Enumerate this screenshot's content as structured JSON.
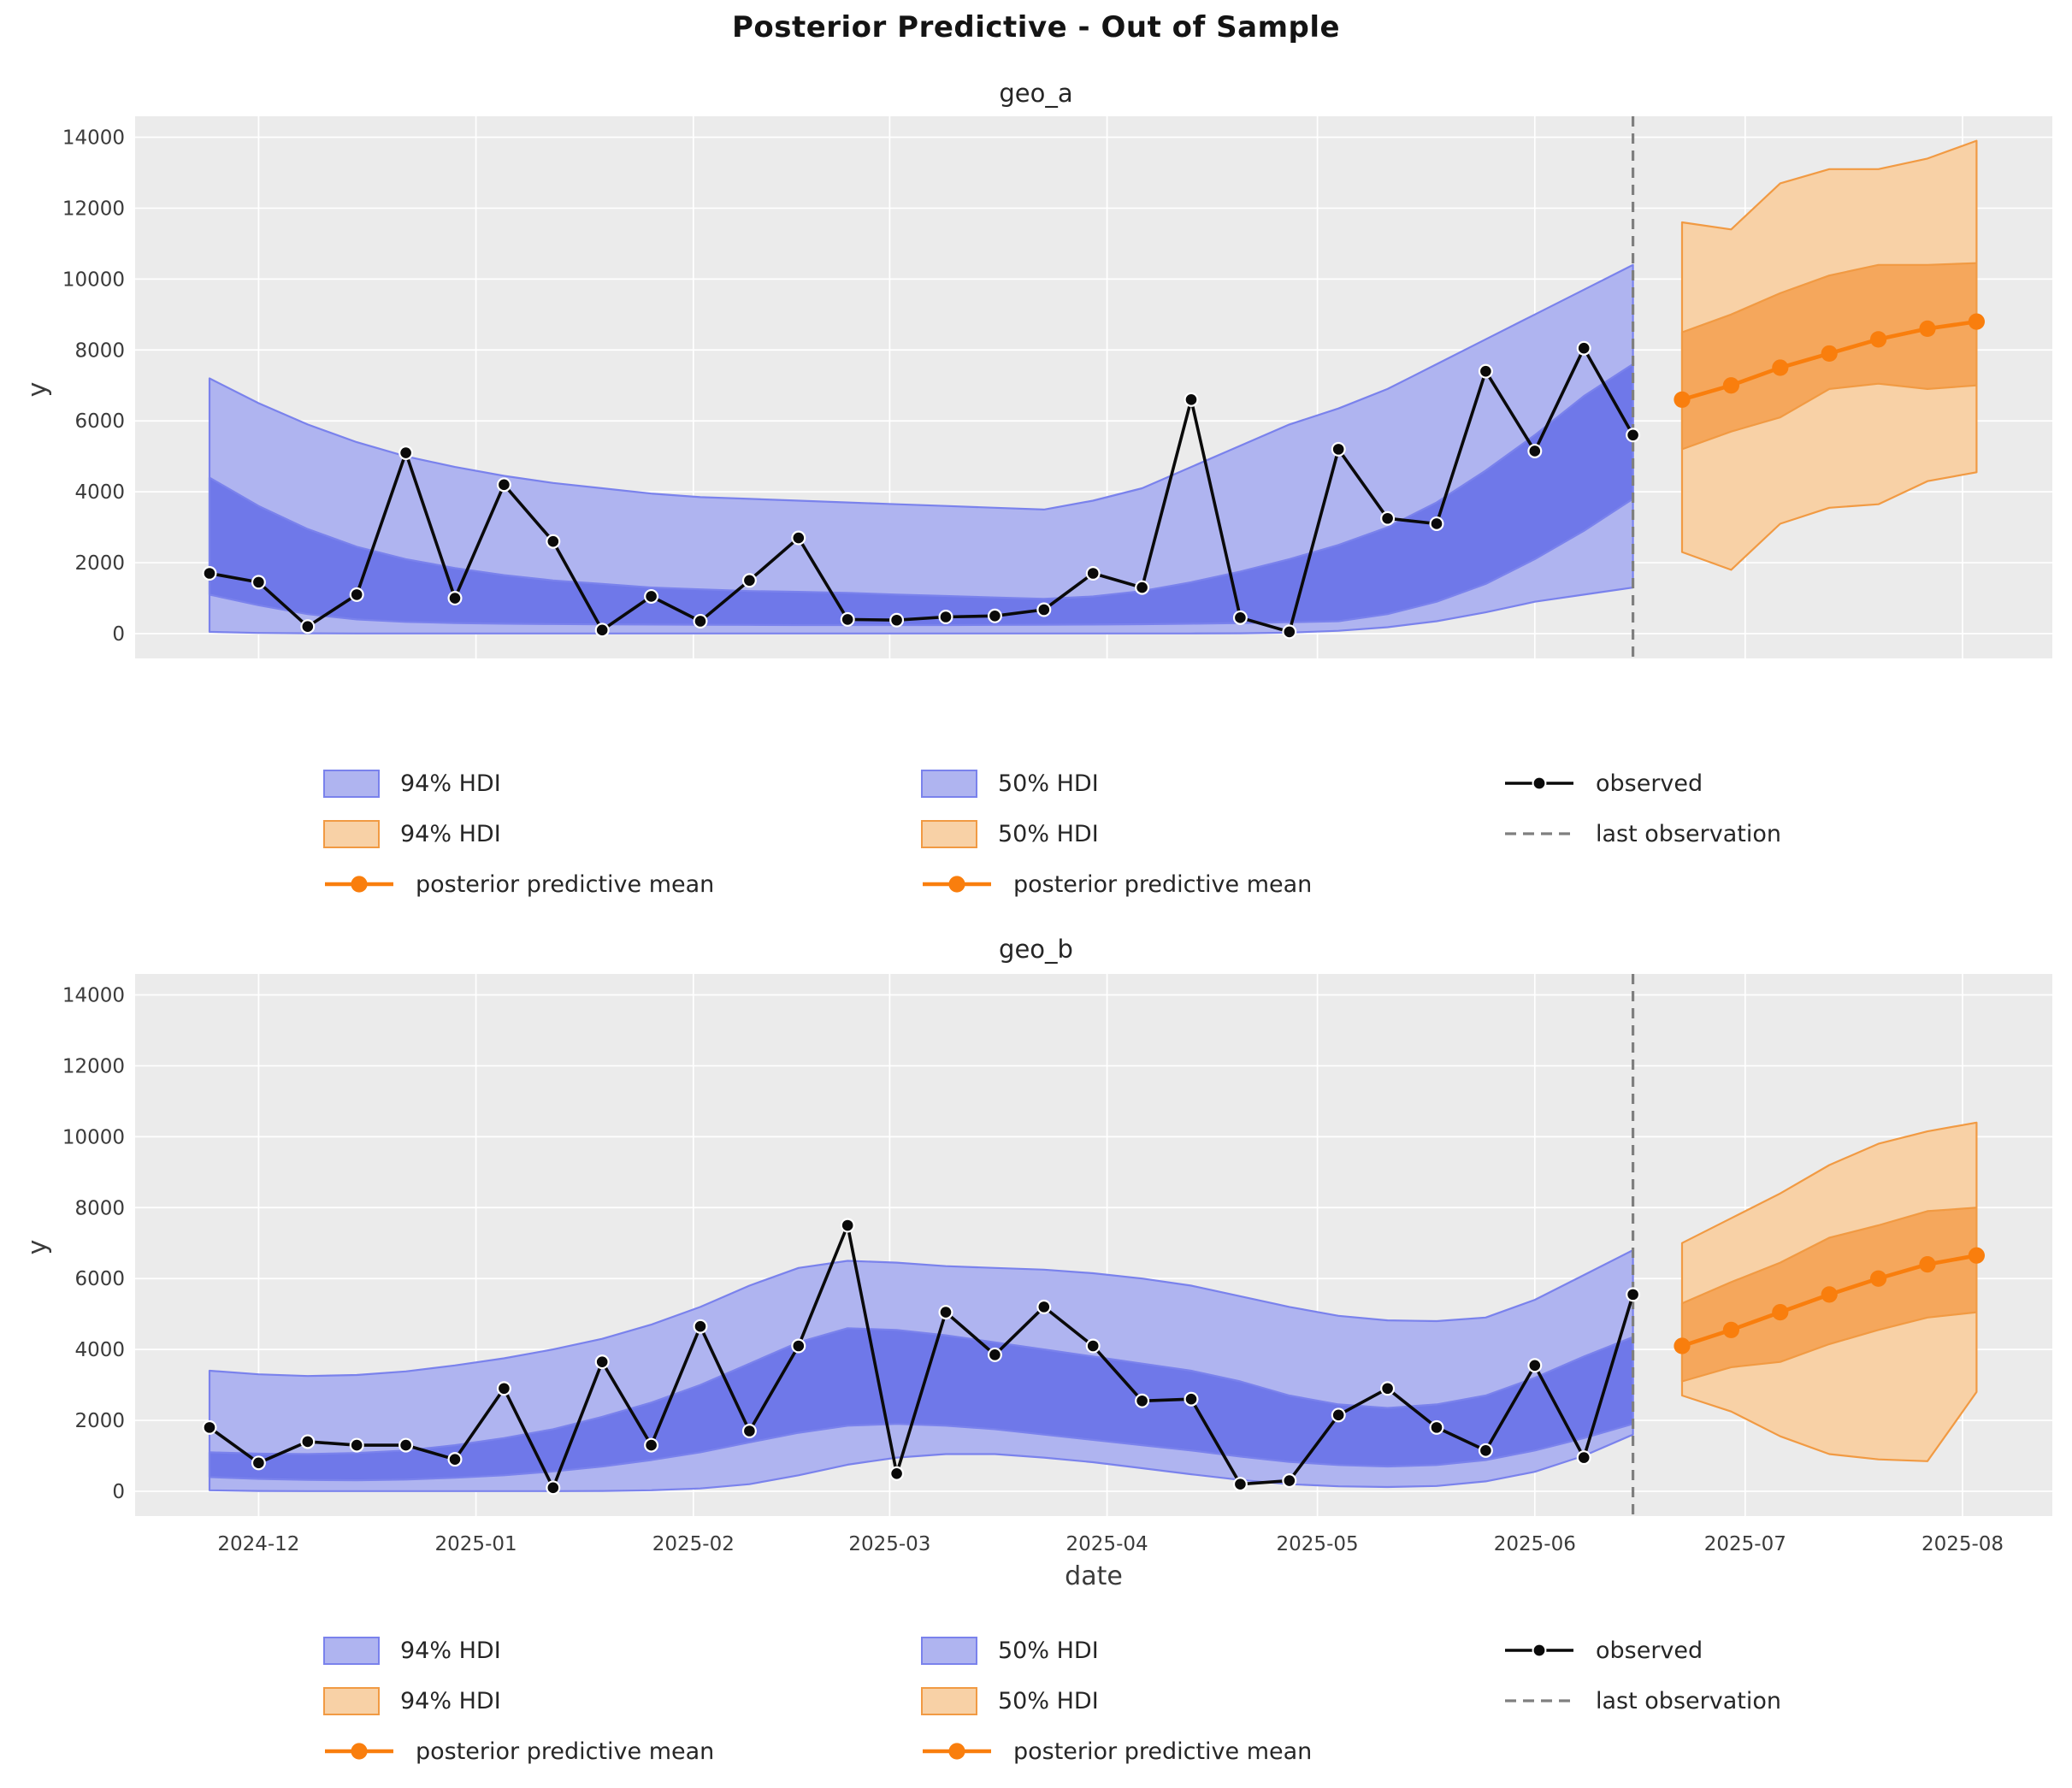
{
  "title": "Posterior Predictive - Out of Sample",
  "x_axis": {
    "label": "date",
    "tick_labels": [
      "2024-12",
      "2025-01",
      "2025-02",
      "2025-03",
      "2025-04",
      "2025-05",
      "2025-06",
      "2025-07",
      "2025-08"
    ],
    "tick_dates": [
      "2024-12-01",
      "2025-01-01",
      "2025-02-01",
      "2025-03-01",
      "2025-04-01",
      "2025-05-01",
      "2025-06-01",
      "2025-07-01",
      "2025-08-01"
    ]
  },
  "y_axis": {
    "label": "y",
    "ticks": [
      0,
      2000,
      4000,
      6000,
      8000,
      10000,
      12000,
      14000
    ]
  },
  "colors": {
    "plot_bg": "#EBEBEB",
    "grid": "#FFFFFF",
    "blue_hdi94_fill": "#AFB4F0",
    "blue_hdi50_fill": "#6F78E9",
    "blue_edge": "#7A82EC",
    "orange_hdi94_fill": "#F8D1A6",
    "orange_hdi50_fill": "#F5A75C",
    "orange_edge": "#F19A43",
    "orange_line": "#F97E0D",
    "observed_line": "#0A0A0A",
    "last_observation_line": "#7F7F7F",
    "tick_text": "#3B3B3B"
  },
  "legend": {
    "columns": [
      [
        {
          "swatch": "blue-patch",
          "label": "94% HDI"
        },
        {
          "swatch": "orange-patch",
          "label": "94% HDI"
        },
        {
          "swatch": "orange-line",
          "label": "posterior predictive mean"
        }
      ],
      [
        {
          "swatch": "blue-patch",
          "label": "50% HDI"
        },
        {
          "swatch": "orange-patch",
          "label": "50% HDI"
        },
        {
          "swatch": "orange-line",
          "label": "posterior predictive mean"
        }
      ],
      [
        {
          "swatch": "black-line",
          "label": "observed"
        },
        {
          "swatch": "gray-dashed",
          "label": "last observation"
        }
      ]
    ]
  },
  "chart_data": [
    {
      "type": "line",
      "title": "geo_a",
      "ylabel": "y",
      "ylim": [
        -690,
        15750
      ],
      "grid": true,
      "last_observation_date": "2025-06-15",
      "observed": {
        "dates": [
          "2024-11-24",
          "2024-12-01",
          "2024-12-08",
          "2024-12-15",
          "2024-12-22",
          "2024-12-29",
          "2025-01-05",
          "2025-01-12",
          "2025-01-19",
          "2025-01-26",
          "2025-02-02",
          "2025-02-09",
          "2025-02-16",
          "2025-02-23",
          "2025-03-02",
          "2025-03-09",
          "2025-03-16",
          "2025-03-23",
          "2025-03-30",
          "2025-04-06",
          "2025-04-13",
          "2025-04-20",
          "2025-04-27",
          "2025-05-04",
          "2025-05-11",
          "2025-05-18",
          "2025-05-25",
          "2025-06-01",
          "2025-06-08",
          "2025-06-15"
        ],
        "values": [
          1700,
          1450,
          200,
          1100,
          5100,
          1000,
          4200,
          2600,
          100,
          1050,
          350,
          1500,
          2700,
          400,
          380,
          470,
          500,
          675,
          1700,
          1300,
          6600,
          450,
          50,
          5200,
          3250,
          3100,
          7400,
          5150,
          8050,
          5600
        ]
      },
      "insample_hdi94": {
        "upper": [
          7200,
          6500,
          5900,
          5400,
          5000,
          4700,
          4450,
          4250,
          4100,
          3950,
          3850,
          3800,
          3750,
          3700,
          3650,
          3600,
          3550,
          3500,
          3750,
          4100,
          4700,
          5300,
          5900,
          6350,
          6900,
          7600,
          8300,
          9000,
          9700,
          10400
        ],
        "lower": [
          50,
          20,
          10,
          5,
          5,
          5,
          5,
          5,
          5,
          5,
          5,
          5,
          5,
          5,
          5,
          5,
          5,
          5,
          5,
          5,
          5,
          10,
          30,
          80,
          180,
          350,
          600,
          900,
          1100,
          1300
        ]
      },
      "insample_hdi50": {
        "upper": [
          4400,
          3600,
          2950,
          2450,
          2100,
          1850,
          1650,
          1500,
          1400,
          1300,
          1250,
          1200,
          1180,
          1150,
          1100,
          1060,
          1020,
          980,
          1050,
          1200,
          1450,
          1750,
          2100,
          2500,
          3000,
          3700,
          4600,
          5600,
          6700,
          7600
        ],
        "lower": [
          1100,
          800,
          550,
          400,
          330,
          300,
          280,
          270,
          260,
          255,
          250,
          245,
          240,
          240,
          240,
          240,
          245,
          250,
          255,
          265,
          280,
          300,
          320,
          350,
          550,
          900,
          1400,
          2100,
          2900,
          3800
        ]
      },
      "forecast": {
        "dates": [
          "2025-06-22",
          "2025-06-29",
          "2025-07-06",
          "2025-07-13",
          "2025-07-20",
          "2025-07-27",
          "2025-08-03"
        ],
        "mean": [
          6600,
          7000,
          7500,
          7900,
          8300,
          8600,
          8800
        ],
        "hdi94_upper": [
          11600,
          11400,
          12700,
          13100,
          13100,
          13400,
          13900
        ],
        "hdi94_lower": [
          2300,
          1800,
          3100,
          3550,
          3650,
          4300,
          4550
        ],
        "hdi50_upper": [
          8500,
          9000,
          9600,
          10100,
          10400,
          10400,
          10450
        ],
        "hdi50_lower": [
          5200,
          5700,
          6100,
          6900,
          7050,
          6900,
          7000
        ]
      }
    },
    {
      "type": "line",
      "title": "geo_b",
      "ylabel": "y",
      "ylim": [
        -690,
        15750
      ],
      "grid": true,
      "last_observation_date": "2025-06-15",
      "observed": {
        "dates": [
          "2024-11-24",
          "2024-12-01",
          "2024-12-08",
          "2024-12-15",
          "2024-12-22",
          "2024-12-29",
          "2025-01-05",
          "2025-01-12",
          "2025-01-19",
          "2025-01-26",
          "2025-02-02",
          "2025-02-09",
          "2025-02-16",
          "2025-02-23",
          "2025-03-02",
          "2025-03-09",
          "2025-03-16",
          "2025-03-23",
          "2025-03-30",
          "2025-04-06",
          "2025-04-13",
          "2025-04-20",
          "2025-04-27",
          "2025-05-04",
          "2025-05-11",
          "2025-05-18",
          "2025-05-25",
          "2025-06-01",
          "2025-06-08",
          "2025-06-15"
        ],
        "values": [
          1800,
          800,
          1400,
          1300,
          1300,
          900,
          2900,
          100,
          3650,
          1300,
          4650,
          1700,
          4100,
          7500,
          500,
          5050,
          3850,
          5200,
          4100,
          2550,
          2600,
          200,
          300,
          2150,
          2900,
          1800,
          1150,
          3550,
          950,
          5550
        ]
      },
      "insample_hdi94": {
        "upper": [
          3400,
          3300,
          3250,
          3280,
          3380,
          3550,
          3750,
          4000,
          4300,
          4700,
          5200,
          5800,
          6300,
          6500,
          6450,
          6350,
          6300,
          6250,
          6150,
          6000,
          5800,
          5500,
          5200,
          4950,
          4820,
          4800,
          4900,
          5400,
          6100,
          6800
        ],
        "lower": [
          30,
          10,
          5,
          5,
          5,
          5,
          5,
          5,
          10,
          30,
          80,
          200,
          450,
          750,
          950,
          1050,
          1050,
          950,
          820,
          650,
          480,
          320,
          200,
          140,
          120,
          150,
          280,
          550,
          1000,
          1600
        ]
      },
      "insample_hdi50": {
        "upper": [
          1100,
          1060,
          1050,
          1080,
          1150,
          1300,
          1500,
          1750,
          2100,
          2500,
          3000,
          3600,
          4200,
          4600,
          4550,
          4400,
          4200,
          4000,
          3800,
          3600,
          3400,
          3100,
          2700,
          2450,
          2350,
          2450,
          2700,
          3200,
          3800,
          4350
        ],
        "lower": [
          400,
          350,
          320,
          310,
          330,
          380,
          450,
          560,
          700,
          880,
          1100,
          1380,
          1650,
          1850,
          1900,
          1850,
          1750,
          1600,
          1450,
          1300,
          1150,
          980,
          830,
          740,
          700,
          740,
          880,
          1150,
          1500,
          1900
        ]
      },
      "forecast": {
        "dates": [
          "2025-06-22",
          "2025-06-29",
          "2025-07-06",
          "2025-07-13",
          "2025-07-20",
          "2025-07-27",
          "2025-08-03"
        ],
        "mean": [
          4100,
          4550,
          5050,
          5550,
          6000,
          6400,
          6650
        ],
        "hdi94_upper": [
          7000,
          7700,
          8400,
          9200,
          9800,
          10150,
          10400
        ],
        "hdi94_lower": [
          2700,
          2250,
          1550,
          1050,
          900,
          850,
          2800
        ],
        "hdi50_upper": [
          5300,
          5900,
          6450,
          7150,
          7500,
          7900,
          8000
        ],
        "hdi50_lower": [
          3100,
          3500,
          3650,
          4150,
          4550,
          4900,
          5050
        ]
      }
    }
  ]
}
